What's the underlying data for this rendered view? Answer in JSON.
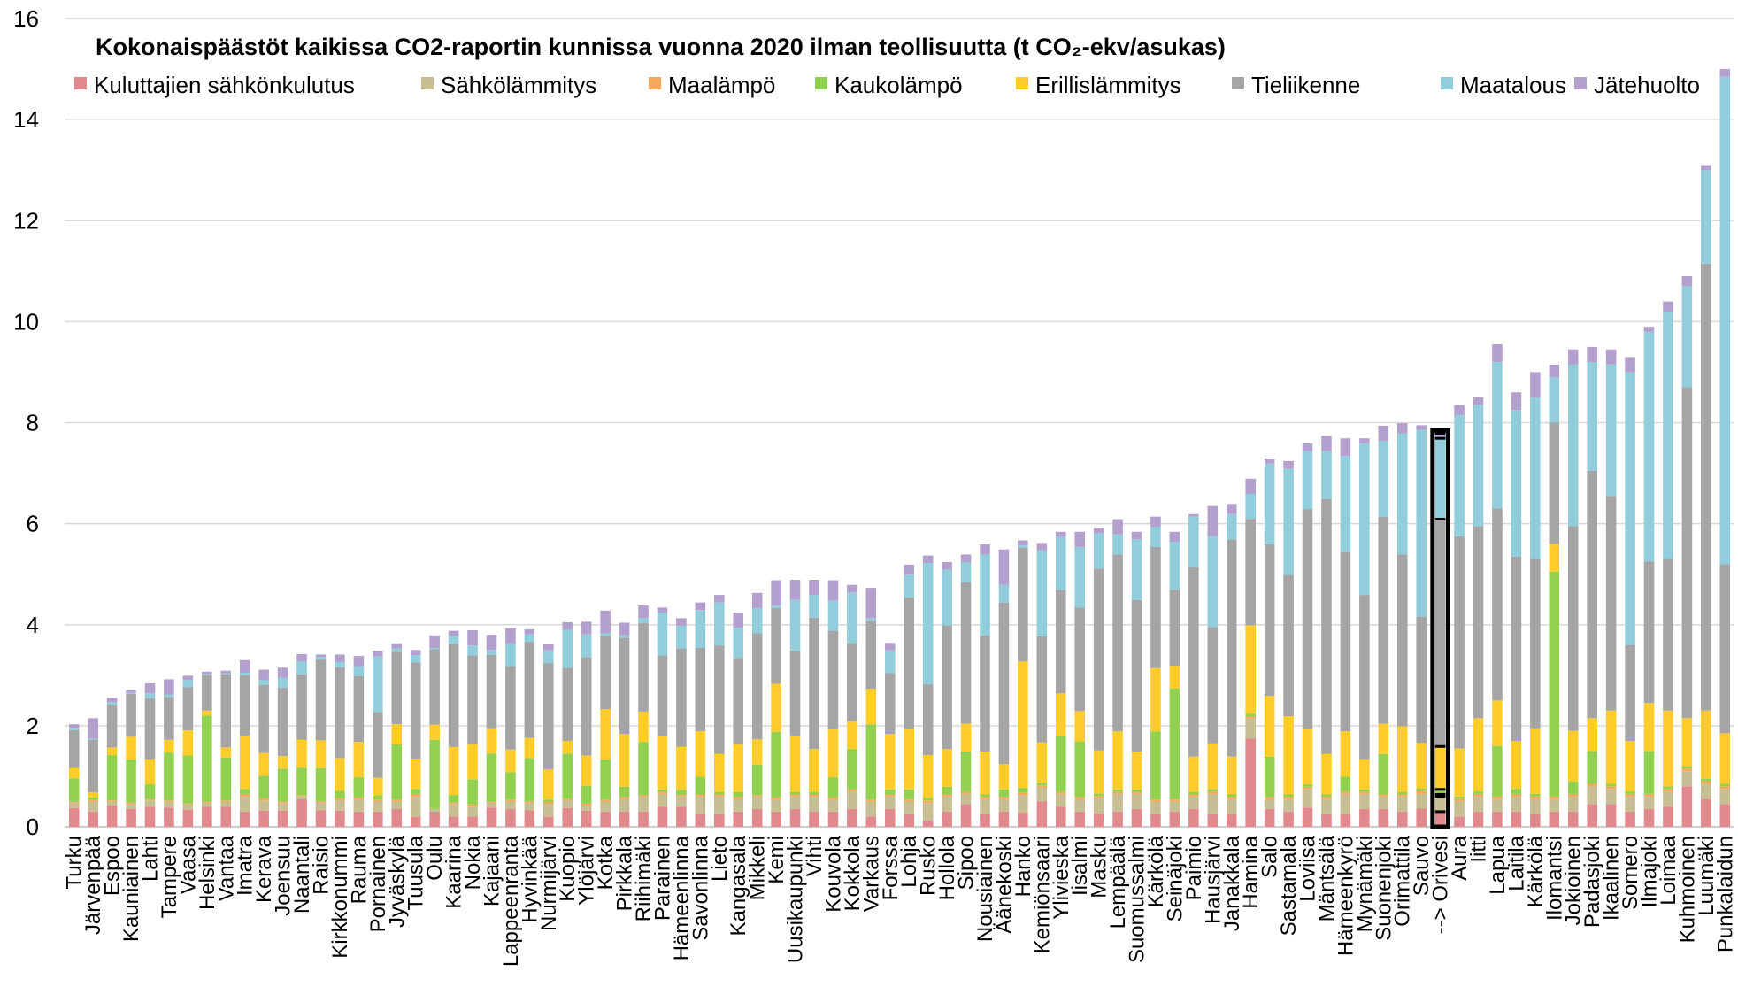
{
  "chart_data": {
    "type": "bar",
    "stacked": true,
    "title": "Kokonaispäästöt kaikissa CO2-raportin kunnissa vuonna 2020 ilman teollisuutta (t CO₂-ekv/asukas)",
    "xlabel": "",
    "ylabel": "",
    "ylim": [
      0,
      16
    ],
    "yticks": [
      "0",
      "2",
      "4",
      "6",
      "8",
      "10",
      "12",
      "14",
      "16"
    ],
    "grid": true,
    "legend_position": "top",
    "highlight_category": "--> Orivesi",
    "categories": [
      "Turku",
      "Järvenpää",
      "Espoo",
      "Kauniainen",
      "Lahti",
      "Tampere",
      "Vaasa",
      "Helsinki",
      "Vantaa",
      "Imatra",
      "Kerava",
      "Joensuu",
      "Naantali",
      "Raisio",
      "Kirkkonummi",
      "Rauma",
      "Pornainen",
      "Jyväskylä",
      "Tuusula",
      "Oulu",
      "Kaarina",
      "Nokia",
      "Kajaani",
      "Lappeenranta",
      "Hyvinkää",
      "Nurmijärvi",
      "Kuopio",
      "Ylöjärvi",
      "Kotka",
      "Pirkkala",
      "Riihimäki",
      "Parainen",
      "Hämeenlinna",
      "Savonlinna",
      "Lieto",
      "Kangasala",
      "Mikkeli",
      "Kemi",
      "Uusikaupunki",
      "Vihti",
      "Kouvola",
      "Kokkola",
      "Varkaus",
      "Forssa",
      "Lohja",
      "Rusko",
      "Hollola",
      "Sipoo",
      "Nousiainen",
      "Äänekoski",
      "Hanko",
      "Kemiönsaari",
      "Ylivieska",
      "Iisalmi",
      "Masku",
      "Lempäälä",
      "Suomussalmi",
      "Kärkölä",
      "Seinäjoki",
      "Paimio",
      "Hausjärvi",
      "Janakkala",
      "Hamina",
      "Salo",
      "Sastamala",
      "Loviisa",
      "Mäntsälä",
      "Hämeenkyrö",
      "Mynämäki",
      "Suonenjoki",
      "Orimattila",
      "Sauvo",
      "--> Orivesi",
      "Aura",
      "Iitti",
      "Lapua",
      "Laitila",
      "Kärkölä",
      "Ilomantsi",
      "Jokioinen",
      "Padasjoki",
      "Ikaalinen",
      "Somero",
      "Ilmajoki",
      "Loimaa",
      "Kuhmoinen",
      "Luumäki",
      "Punkalaidun"
    ],
    "series": [
      {
        "name": "Kuluttajien sähkönkulutus",
        "color": "#E08A8E",
        "values": [
          0.37,
          0.3,
          0.42,
          0.35,
          0.4,
          0.38,
          0.34,
          0.4,
          0.4,
          0.3,
          0.32,
          0.32,
          0.55,
          0.33,
          0.32,
          0.3,
          0.3,
          0.35,
          0.2,
          0.3,
          0.2,
          0.2,
          0.38,
          0.35,
          0.33,
          0.2,
          0.37,
          0.32,
          0.3,
          0.3,
          0.3,
          0.4,
          0.4,
          0.25,
          0.25,
          0.3,
          0.35,
          0.3,
          0.35,
          0.3,
          0.3,
          0.35,
          0.2,
          0.35,
          0.25,
          0.12,
          0.3,
          0.45,
          0.25,
          0.3,
          0.28,
          0.5,
          0.4,
          0.3,
          0.27,
          0.3,
          0.35,
          0.25,
          0.3,
          0.35,
          0.25,
          0.25,
          1.75,
          0.35,
          0.3,
          0.38,
          0.25,
          0.25,
          0.35,
          0.35,
          0.3,
          0.36,
          0.3,
          0.2,
          0.3,
          0.3,
          0.3,
          0.25,
          0.3,
          0.3,
          0.45,
          0.45,
          0.3,
          0.35,
          0.4,
          0.8,
          0.55,
          0.45
        ]
      },
      {
        "name": "Sähkölämmitys",
        "color": "#C8BE94",
        "values": [
          0.12,
          0.2,
          0.08,
          0.1,
          0.12,
          0.12,
          0.1,
          0.08,
          0.1,
          0.3,
          0.2,
          0.15,
          0.05,
          0.15,
          0.2,
          0.25,
          0.2,
          0.15,
          0.4,
          0.05,
          0.25,
          0.2,
          0.1,
          0.15,
          0.15,
          0.25,
          0.15,
          0.1,
          0.2,
          0.25,
          0.3,
          0.25,
          0.2,
          0.35,
          0.35,
          0.25,
          0.25,
          0.25,
          0.25,
          0.3,
          0.25,
          0.35,
          0.3,
          0.25,
          0.25,
          0.35,
          0.3,
          0.2,
          0.3,
          0.25,
          0.35,
          0.28,
          0.25,
          0.25,
          0.3,
          0.35,
          0.3,
          0.25,
          0.2,
          0.25,
          0.4,
          0.3,
          0.4,
          0.2,
          0.25,
          0.37,
          0.3,
          0.4,
          0.3,
          0.25,
          0.3,
          0.29,
          0.3,
          0.3,
          0.3,
          0.25,
          0.3,
          0.3,
          0.25,
          0.3,
          0.35,
          0.3,
          0.3,
          0.25,
          0.3,
          0.3,
          0.3,
          0.3
        ]
      },
      {
        "name": "Maalämpö",
        "color": "#F7A95A",
        "values": [
          0.02,
          0.03,
          0.02,
          0.03,
          0.02,
          0.02,
          0.02,
          0.02,
          0.02,
          0.05,
          0.04,
          0.03,
          0.02,
          0.03,
          0.04,
          0.03,
          0.04,
          0.03,
          0.05,
          0.02,
          0.03,
          0.04,
          0.02,
          0.03,
          0.03,
          0.04,
          0.03,
          0.04,
          0.03,
          0.04,
          0.03,
          0.04,
          0.03,
          0.04,
          0.04,
          0.04,
          0.03,
          0.03,
          0.04,
          0.04,
          0.03,
          0.04,
          0.03,
          0.04,
          0.04,
          0.05,
          0.04,
          0.04,
          0.04,
          0.04,
          0.04,
          0.04,
          0.04,
          0.04,
          0.04,
          0.04,
          0.04,
          0.04,
          0.04,
          0.04,
          0.05,
          0.04,
          0.04,
          0.04,
          0.04,
          0.04,
          0.04,
          0.04,
          0.04,
          0.04,
          0.04,
          0.06,
          0.04,
          0.05,
          0.05,
          0.05,
          0.05,
          0.05,
          0.05,
          0.05,
          0.05,
          0.05,
          0.05,
          0.05,
          0.05,
          0.05,
          0.05,
          0.05
        ]
      },
      {
        "name": "Kaukolämpö",
        "color": "#92D050",
        "values": [
          0.45,
          0.05,
          0.9,
          0.85,
          0.3,
          0.95,
          0.95,
          1.7,
          0.85,
          0.1,
          0.45,
          0.65,
          0.55,
          0.65,
          0.15,
          0.4,
          0.08,
          1.1,
          0.1,
          1.35,
          0.15,
          0.5,
          0.95,
          0.55,
          0.85,
          0.05,
          0.9,
          0.35,
          0.8,
          0.2,
          1.05,
          0.05,
          0.1,
          0.35,
          0.05,
          0.1,
          0.6,
          1.3,
          0.05,
          0.05,
          0.4,
          0.8,
          1.5,
          0.1,
          0.2,
          0.05,
          0.15,
          0.8,
          0.05,
          0.15,
          0.1,
          0.05,
          1.1,
          1.1,
          0.05,
          0.05,
          0.05,
          1.35,
          2.2,
          0.05,
          0.05,
          0.05,
          0.05,
          0.8,
          0.05,
          0.05,
          0.05,
          0.3,
          0.05,
          0.8,
          0.05,
          0.05,
          0.1,
          0.05,
          0.05,
          1.0,
          0.1,
          0.05,
          4.45,
          0.25,
          0.65,
          0.05,
          0.05,
          0.85,
          0.05,
          0.05,
          0.05,
          0.05
        ]
      },
      {
        "name": "Erillislämmitys",
        "color": "#FFCC29",
        "values": [
          0.2,
          0.1,
          0.15,
          0.45,
          0.5,
          0.25,
          0.5,
          0.1,
          0.2,
          1.05,
          0.45,
          0.25,
          0.55,
          0.55,
          0.65,
          0.7,
          0.35,
          0.4,
          0.6,
          0.3,
          0.95,
          0.7,
          0.5,
          0.45,
          0.4,
          0.6,
          0.25,
          0.6,
          1.0,
          1.05,
          0.6,
          1.05,
          0.85,
          0.9,
          0.75,
          0.95,
          0.5,
          0.95,
          1.1,
          0.85,
          0.95,
          0.55,
          0.7,
          1.1,
          1.2,
          0.85,
          0.75,
          0.55,
          0.85,
          0.5,
          2.5,
          0.8,
          0.85,
          0.6,
          0.85,
          1.15,
          0.75,
          1.25,
          0.45,
          0.7,
          0.9,
          0.75,
          1.75,
          1.2,
          1.55,
          1.1,
          0.8,
          0.9,
          0.6,
          0.6,
          1.3,
          0.9,
          0.85,
          0.95,
          1.45,
          0.9,
          0.95,
          1.3,
          0.55,
          1.0,
          0.65,
          1.45,
          1.0,
          0.95,
          1.5,
          0.95,
          1.35,
          1.0
        ]
      },
      {
        "name": "Tieliikenne",
        "color": "#A5A5A5",
        "values": [
          0.75,
          1.05,
          0.85,
          0.85,
          1.2,
          0.85,
          0.85,
          0.7,
          1.45,
          1.2,
          1.35,
          1.35,
          1.3,
          1.6,
          1.8,
          1.3,
          1.3,
          1.45,
          1.9,
          1.5,
          2.05,
          1.75,
          1.45,
          1.65,
          1.9,
          2.1,
          1.45,
          1.95,
          1.45,
          1.9,
          1.75,
          1.6,
          1.95,
          1.65,
          2.15,
          1.7,
          2.1,
          1.5,
          1.7,
          2.6,
          1.95,
          1.55,
          1.35,
          1.2,
          2.6,
          1.4,
          2.45,
          2.8,
          2.3,
          3.2,
          2.25,
          2.1,
          2.05,
          2.05,
          3.6,
          3.5,
          3.0,
          2.4,
          1.5,
          3.75,
          2.3,
          4.3,
          2.1,
          3.0,
          2.8,
          4.35,
          5.05,
          3.55,
          3.25,
          4.1,
          3.4,
          2.5,
          4.5,
          4.2,
          3.8,
          3.8,
          3.65,
          3.35,
          2.4,
          4.05,
          4.9,
          4.25,
          1.9,
          2.8,
          3.0,
          6.55,
          8.85,
          3.35
        ]
      },
      {
        "name": "Maatalous",
        "color": "#92CDDC",
        "values": [
          0.05,
          0.02,
          0.05,
          0.02,
          0.1,
          0.05,
          0.15,
          0.02,
          0.02,
          0.05,
          0.1,
          0.2,
          0.25,
          0.05,
          0.1,
          0.2,
          1.1,
          0.05,
          0.15,
          0.02,
          0.15,
          0.2,
          0.1,
          0.45,
          0.15,
          0.25,
          0.75,
          0.45,
          0.05,
          0.05,
          0.1,
          0.85,
          0.45,
          0.75,
          0.85,
          0.6,
          0.5,
          0.05,
          1.0,
          0.45,
          0.6,
          1.0,
          0.05,
          0.45,
          0.45,
          2.4,
          1.1,
          0.4,
          1.6,
          0.35,
          0.05,
          1.7,
          1.05,
          1.2,
          0.7,
          0.4,
          1.2,
          0.4,
          0.95,
          1.0,
          1.8,
          0.5,
          0.5,
          1.6,
          2.1,
          1.15,
          0.95,
          1.9,
          3.0,
          1.5,
          2.4,
          3.7,
          1.6,
          2.4,
          2.4,
          2.9,
          2.9,
          3.2,
          0.9,
          3.2,
          2.15,
          2.6,
          5.4,
          4.55,
          4.9,
          2.0,
          1.85,
          9.65
        ]
      },
      {
        "name": "Jätehuolto",
        "color": "#B4A0CF",
        "values": [
          0.07,
          0.4,
          0.08,
          0.05,
          0.2,
          0.3,
          0.08,
          0.05,
          0.05,
          0.25,
          0.2,
          0.2,
          0.15,
          0.05,
          0.15,
          0.2,
          0.12,
          0.1,
          0.1,
          0.25,
          0.1,
          0.3,
          0.3,
          0.3,
          0.1,
          0.12,
          0.15,
          0.25,
          0.45,
          0.25,
          0.25,
          0.1,
          0.15,
          0.15,
          0.15,
          0.3,
          0.3,
          0.5,
          0.4,
          0.3,
          0.4,
          0.15,
          0.6,
          0.15,
          0.2,
          0.15,
          0.15,
          0.15,
          0.2,
          0.7,
          0.1,
          0.15,
          0.1,
          0.3,
          0.1,
          0.3,
          0.15,
          0.2,
          0.2,
          0.05,
          0.6,
          0.2,
          0.3,
          0.1,
          0.15,
          0.15,
          0.3,
          0.35,
          0.1,
          0.3,
          0.2,
          0.09,
          0.1,
          0.2,
          0.15,
          0.35,
          0.35,
          0.5,
          0.25,
          0.3,
          0.3,
          0.3,
          0.3,
          0.1,
          0.2,
          0.2,
          0.1,
          0.15
        ]
      }
    ]
  }
}
